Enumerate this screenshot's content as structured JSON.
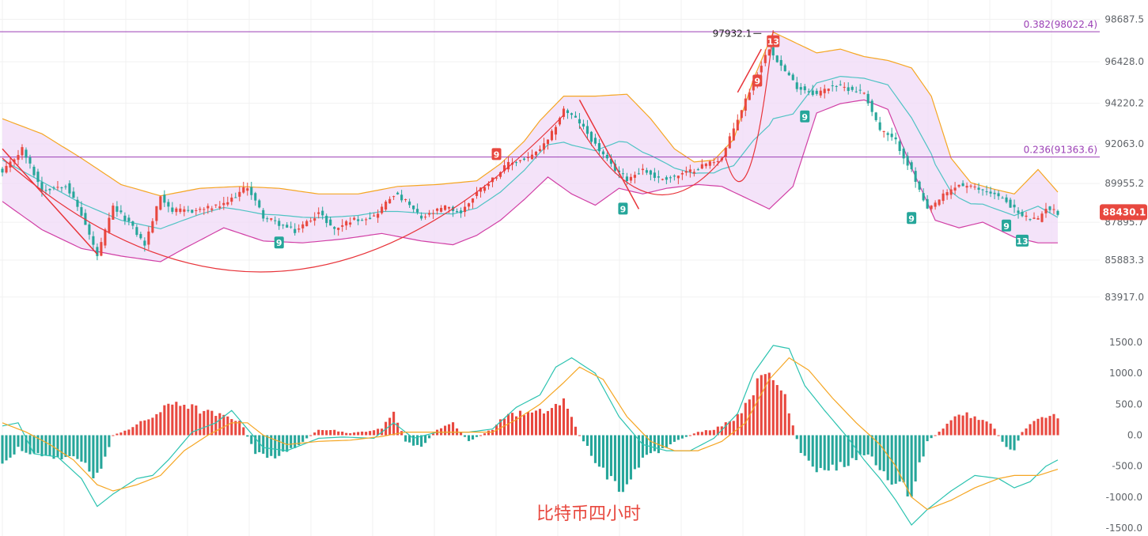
{
  "caption": "比特币四小时",
  "colors": {
    "up": "#e8483f",
    "down": "#26a69a",
    "band_fill": "#f0d9f7",
    "band_upper": "#f5a623",
    "band_lower": "#d13fa5",
    "band_mid": "#4fc3c4",
    "fib": "#9b3fb5",
    "dif": "#2cc3b0",
    "dea": "#f5a623",
    "trend": "#e8343a",
    "grid": "#f1f1f1"
  },
  "chart_data": [
    {
      "type": "candlestick",
      "title": "",
      "ylim": [
        82900,
        99500
      ],
      "y_ticks": [
        "98687.5",
        "96428.0",
        "94220.2",
        "92063.0",
        "89955.2",
        "87895.7",
        "85883.3",
        "83917.0"
      ],
      "last_price": "88430.1",
      "last_price_value": 88430.1,
      "high_marker": {
        "label": "97932.1",
        "value": 97932.1,
        "bar": 192
      },
      "fib_levels": [
        {
          "label": "0.382(98022.4)",
          "value": 98022.4
        },
        {
          "label": "0.236(91363.6)",
          "value": 91363.6
        }
      ],
      "bar_count": 268,
      "close_keypoints": [
        [
          0,
          90500
        ],
        [
          5,
          91800
        ],
        [
          10,
          89600
        ],
        [
          16,
          89900
        ],
        [
          20,
          88300
        ],
        [
          24,
          86100
        ],
        [
          28,
          88700
        ],
        [
          32,
          87900
        ],
        [
          36,
          86700
        ],
        [
          40,
          89300
        ],
        [
          43,
          88500
        ],
        [
          48,
          88500
        ],
        [
          56,
          88800
        ],
        [
          62,
          89800
        ],
        [
          66,
          88200
        ],
        [
          70,
          87800
        ],
        [
          74,
          87400
        ],
        [
          80,
          88400
        ],
        [
          84,
          87500
        ],
        [
          88,
          88000
        ],
        [
          94,
          88200
        ],
        [
          99,
          89400
        ],
        [
          102,
          89000
        ],
        [
          106,
          88100
        ],
        [
          112,
          88700
        ],
        [
          116,
          88400
        ],
        [
          120,
          89500
        ],
        [
          124,
          90200
        ],
        [
          128,
          91000
        ],
        [
          134,
          91400
        ],
        [
          138,
          92200
        ],
        [
          142,
          93900
        ],
        [
          146,
          93200
        ],
        [
          150,
          92000
        ],
        [
          154,
          90900
        ],
        [
          158,
          90200
        ],
        [
          162,
          90700
        ],
        [
          166,
          90200
        ],
        [
          170,
          90300
        ],
        [
          174,
          90600
        ],
        [
          178,
          91000
        ],
        [
          182,
          91300
        ],
        [
          186,
          93400
        ],
        [
          190,
          95400
        ],
        [
          194,
          97200
        ],
        [
          197,
          96200
        ],
        [
          201,
          95100
        ],
        [
          206,
          94700
        ],
        [
          210,
          95200
        ],
        [
          214,
          95000
        ],
        [
          218,
          94800
        ],
        [
          222,
          92800
        ],
        [
          226,
          92200
        ],
        [
          230,
          90600
        ],
        [
          234,
          88500
        ],
        [
          238,
          89300
        ],
        [
          242,
          89900
        ],
        [
          246,
          89700
        ],
        [
          250,
          89500
        ],
        [
          254,
          89000
        ],
        [
          258,
          88200
        ],
        [
          262,
          88000
        ],
        [
          264,
          88700
        ],
        [
          267,
          88400
        ]
      ],
      "band_upper_keypoints": [
        [
          0,
          93400
        ],
        [
          10,
          92600
        ],
        [
          20,
          91300
        ],
        [
          30,
          89900
        ],
        [
          40,
          89300
        ],
        [
          50,
          89700
        ],
        [
          60,
          89800
        ],
        [
          70,
          89700
        ],
        [
          80,
          89400
        ],
        [
          90,
          89400
        ],
        [
          100,
          89800
        ],
        [
          110,
          89900
        ],
        [
          120,
          90100
        ],
        [
          126,
          91000
        ],
        [
          132,
          92200
        ],
        [
          136,
          93300
        ],
        [
          142,
          94600
        ],
        [
          150,
          94600
        ],
        [
          158,
          94700
        ],
        [
          164,
          93400
        ],
        [
          170,
          91800
        ],
        [
          175,
          91100
        ],
        [
          180,
          91200
        ],
        [
          185,
          92300
        ],
        [
          190,
          95500
        ],
        [
          195,
          98000
        ],
        [
          200,
          97500
        ],
        [
          206,
          96900
        ],
        [
          212,
          97100
        ],
        [
          218,
          96700
        ],
        [
          224,
          96500
        ],
        [
          230,
          96100
        ],
        [
          235,
          94600
        ],
        [
          240,
          91300
        ],
        [
          245,
          90000
        ],
        [
          250,
          89700
        ],
        [
          256,
          89400
        ],
        [
          262,
          90700
        ],
        [
          267,
          89500
        ]
      ],
      "band_lower_keypoints": [
        [
          0,
          89000
        ],
        [
          10,
          87500
        ],
        [
          20,
          86500
        ],
        [
          30,
          86100
        ],
        [
          40,
          85800
        ],
        [
          46,
          86500
        ],
        [
          56,
          87600
        ],
        [
          66,
          86900
        ],
        [
          76,
          86800
        ],
        [
          86,
          87000
        ],
        [
          96,
          87300
        ],
        [
          106,
          86900
        ],
        [
          114,
          86700
        ],
        [
          120,
          87200
        ],
        [
          126,
          88000
        ],
        [
          132,
          89100
        ],
        [
          138,
          90300
        ],
        [
          144,
          89400
        ],
        [
          150,
          88800
        ],
        [
          156,
          89700
        ],
        [
          162,
          89400
        ],
        [
          168,
          89700
        ],
        [
          176,
          89900
        ],
        [
          182,
          89800
        ],
        [
          188,
          89200
        ],
        [
          194,
          88600
        ],
        [
          200,
          89800
        ],
        [
          206,
          93700
        ],
        [
          212,
          94200
        ],
        [
          218,
          94400
        ],
        [
          224,
          93900
        ],
        [
          230,
          90800
        ],
        [
          236,
          88000
        ],
        [
          242,
          87600
        ],
        [
          248,
          87900
        ],
        [
          256,
          87100
        ],
        [
          262,
          86800
        ],
        [
          267,
          86800
        ]
      ],
      "trend_lines": [
        {
          "x1": 0,
          "y1": 91800,
          "x2": 24,
          "y2": 86200
        },
        {
          "x1": 146,
          "y1": 94400,
          "x2": 161,
          "y2": 88600
        },
        {
          "x1": 186,
          "y1": 94800,
          "x2": 192,
          "y2": 97100
        }
      ],
      "arcs": [
        {
          "x1": 0,
          "y1": 91300,
          "x2": 142,
          "y2": 93600,
          "depth": 85300
        },
        {
          "x1": 146,
          "y1": 93000,
          "x2": 183,
          "y2": 91500,
          "depth": 89400
        },
        {
          "x1": 183,
          "y1": 91300,
          "x2": 195,
          "y2": 98100,
          "depth": 90800
        }
      ],
      "td_markers": [
        {
          "label": "9",
          "bar": 70,
          "value": 86800,
          "dir": "down"
        },
        {
          "label": "9",
          "bar": 125,
          "value": 91500,
          "dir": "up"
        },
        {
          "label": "9",
          "bar": 157,
          "value": 88600,
          "dir": "down"
        },
        {
          "label": "9",
          "bar": 191,
          "value": 95400,
          "dir": "up"
        },
        {
          "label": "13",
          "bar": 195,
          "value": 97500,
          "dir": "up"
        },
        {
          "label": "9",
          "bar": 203,
          "value": 93500,
          "dir": "down"
        },
        {
          "label": "9",
          "bar": 230,
          "value": 88100,
          "dir": "down"
        },
        {
          "label": "9",
          "bar": 254,
          "value": 87700,
          "dir": "down"
        },
        {
          "label": "13",
          "bar": 258,
          "value": 86900,
          "dir": "down"
        }
      ]
    },
    {
      "type": "macd",
      "ylim": [
        -1500,
        1500
      ],
      "y_ticks": [
        "1500.0",
        "1000.0",
        "500.0",
        "0.0",
        "-500.0",
        "-1000.0",
        "-1500.0"
      ],
      "y_tick_values": [
        1500,
        1000,
        500,
        0,
        -500,
        -1000,
        -1500
      ],
      "dif_keypoints": [
        [
          0,
          150
        ],
        [
          4,
          200
        ],
        [
          8,
          -300
        ],
        [
          14,
          -350
        ],
        [
          20,
          -700
        ],
        [
          24,
          -1150
        ],
        [
          28,
          -950
        ],
        [
          34,
          -700
        ],
        [
          38,
          -650
        ],
        [
          42,
          -400
        ],
        [
          48,
          50
        ],
        [
          54,
          200
        ],
        [
          58,
          400
        ],
        [
          62,
          100
        ],
        [
          66,
          -200
        ],
        [
          72,
          -250
        ],
        [
          80,
          -50
        ],
        [
          86,
          -30
        ],
        [
          94,
          -50
        ],
        [
          99,
          200
        ],
        [
          104,
          -50
        ],
        [
          110,
          50
        ],
        [
          118,
          50
        ],
        [
          124,
          100
        ],
        [
          130,
          450
        ],
        [
          136,
          650
        ],
        [
          140,
          1100
        ],
        [
          144,
          1250
        ],
        [
          150,
          1000
        ],
        [
          156,
          300
        ],
        [
          162,
          -150
        ],
        [
          168,
          -250
        ],
        [
          174,
          -250
        ],
        [
          180,
          -50
        ],
        [
          186,
          350
        ],
        [
          190,
          1000
        ],
        [
          195,
          1450
        ],
        [
          199,
          1400
        ],
        [
          203,
          800
        ],
        [
          208,
          400
        ],
        [
          214,
          -50
        ],
        [
          218,
          -400
        ],
        [
          222,
          -700
        ],
        [
          226,
          -1050
        ],
        [
          230,
          -1450
        ],
        [
          234,
          -1200
        ],
        [
          240,
          -900
        ],
        [
          246,
          -650
        ],
        [
          252,
          -700
        ],
        [
          256,
          -850
        ],
        [
          260,
          -750
        ],
        [
          264,
          -500
        ],
        [
          267,
          -400
        ]
      ],
      "dea_keypoints": [
        [
          0,
          200
        ],
        [
          6,
          50
        ],
        [
          12,
          -150
        ],
        [
          18,
          -400
        ],
        [
          24,
          -800
        ],
        [
          28,
          -900
        ],
        [
          34,
          -800
        ],
        [
          40,
          -650
        ],
        [
          46,
          -250
        ],
        [
          52,
          0
        ],
        [
          58,
          200
        ],
        [
          62,
          200
        ],
        [
          66,
          0
        ],
        [
          72,
          -150
        ],
        [
          80,
          -100
        ],
        [
          88,
          -80
        ],
        [
          96,
          -20
        ],
        [
          102,
          50
        ],
        [
          108,
          50
        ],
        [
          116,
          50
        ],
        [
          124,
          50
        ],
        [
          130,
          250
        ],
        [
          136,
          500
        ],
        [
          142,
          850
        ],
        [
          146,
          1100
        ],
        [
          152,
          900
        ],
        [
          158,
          300
        ],
        [
          164,
          -100
        ],
        [
          170,
          -250
        ],
        [
          176,
          -250
        ],
        [
          182,
          -100
        ],
        [
          188,
          200
        ],
        [
          194,
          900
        ],
        [
          199,
          1250
        ],
        [
          204,
          1050
        ],
        [
          210,
          600
        ],
        [
          216,
          200
        ],
        [
          222,
          -150
        ],
        [
          226,
          -500
        ],
        [
          230,
          -1000
        ],
        [
          234,
          -1200
        ],
        [
          240,
          -1050
        ],
        [
          246,
          -850
        ],
        [
          252,
          -700
        ],
        [
          256,
          -650
        ],
        [
          262,
          -650
        ],
        [
          267,
          -550
        ]
      ],
      "hist_keypoints": [
        [
          0,
          -500
        ],
        [
          4,
          -200
        ],
        [
          8,
          -300
        ],
        [
          14,
          -350
        ],
        [
          20,
          -400
        ],
        [
          24,
          -700
        ],
        [
          28,
          0
        ],
        [
          32,
          100
        ],
        [
          38,
          300
        ],
        [
          44,
          550
        ],
        [
          50,
          400
        ],
        [
          56,
          300
        ],
        [
          60,
          250
        ],
        [
          64,
          -300
        ],
        [
          70,
          -350
        ],
        [
          76,
          -100
        ],
        [
          80,
          100
        ],
        [
          84,
          80
        ],
        [
          88,
          30
        ],
        [
          96,
          100
        ],
        [
          99,
          400
        ],
        [
          102,
          -100
        ],
        [
          106,
          -200
        ],
        [
          110,
          100
        ],
        [
          114,
          200
        ],
        [
          118,
          -100
        ],
        [
          124,
          100
        ],
        [
          128,
          350
        ],
        [
          134,
          350
        ],
        [
          138,
          400
        ],
        [
          142,
          550
        ],
        [
          146,
          0
        ],
        [
          150,
          -400
        ],
        [
          156,
          -900
        ],
        [
          162,
          -400
        ],
        [
          168,
          -200
        ],
        [
          172,
          -50
        ],
        [
          176,
          50
        ],
        [
          180,
          100
        ],
        [
          186,
          300
        ],
        [
          190,
          750
        ],
        [
          194,
          1000
        ],
        [
          198,
          650
        ],
        [
          202,
          -300
        ],
        [
          206,
          -600
        ],
        [
          212,
          -500
        ],
        [
          218,
          -300
        ],
        [
          222,
          -500
        ],
        [
          226,
          -800
        ],
        [
          230,
          -900
        ],
        [
          234,
          -100
        ],
        [
          238,
          100
        ],
        [
          242,
          350
        ],
        [
          246,
          300
        ],
        [
          250,
          200
        ],
        [
          254,
          -200
        ],
        [
          256,
          -250
        ],
        [
          258,
          50
        ],
        [
          262,
          300
        ],
        [
          267,
          300
        ]
      ]
    }
  ]
}
